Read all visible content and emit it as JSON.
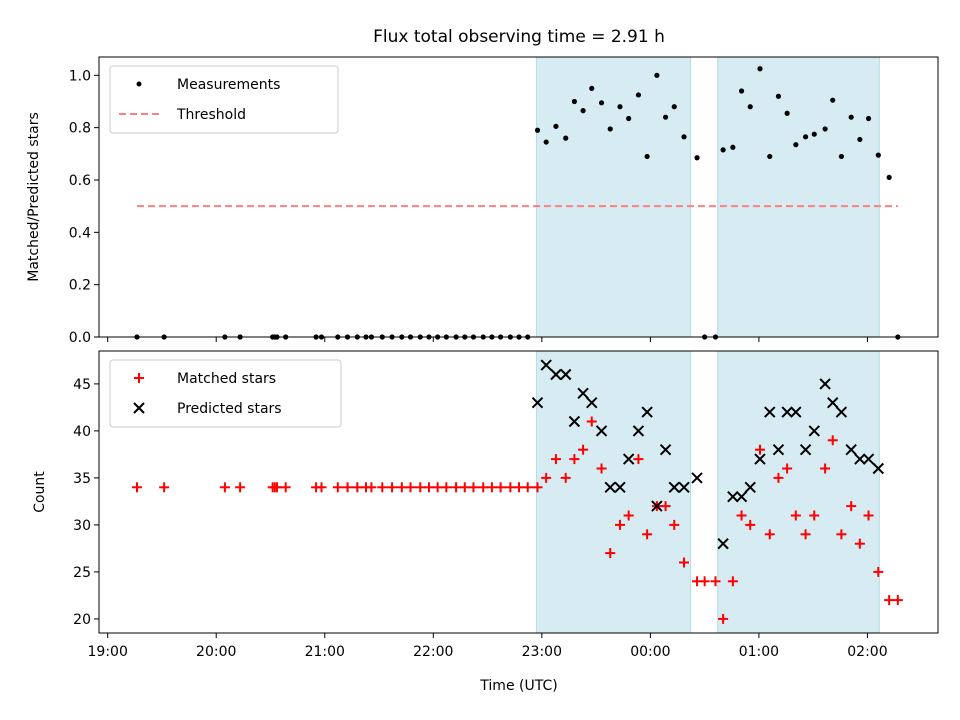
{
  "figure": {
    "title": "Flux total observing time = 2.91 h",
    "xlabel": "Time (UTC)",
    "x_unit": "hours, 19:00 = 19",
    "x_range": [
      18.92,
      26.65
    ],
    "x_ticks": [
      19,
      20,
      21,
      22,
      23,
      24,
      25,
      26
    ],
    "x_tick_labels": [
      "19:00",
      "20:00",
      "21:00",
      "22:00",
      "23:00",
      "00:00",
      "01:00",
      "02:00"
    ],
    "shaded_intervals": [
      [
        22.95,
        24.37
      ],
      [
        24.62,
        26.11
      ]
    ],
    "shade_color": "#add8e6"
  },
  "chart_data": [
    {
      "type": "scatter",
      "ylabel": "Matched/Predicted stars",
      "ylim": [
        0,
        1.07
      ],
      "yticks": [
        0.0,
        0.2,
        0.4,
        0.6,
        0.8,
        1.0
      ],
      "ytick_labels": [
        "0.0",
        "0.2",
        "0.4",
        "0.6",
        "0.8",
        "1.0"
      ],
      "legend_position": "upper-left",
      "series": [
        {
          "name": "Measurements",
          "marker": "dot",
          "color": "#000000",
          "x": [
            19.27,
            19.52,
            20.08,
            20.22,
            20.52,
            20.54,
            20.56,
            20.64,
            20.92,
            20.97,
            21.12,
            21.21,
            21.3,
            21.38,
            21.43,
            21.53,
            21.62,
            21.71,
            21.79,
            21.88,
            21.96,
            22.04,
            22.12,
            22.21,
            22.29,
            22.37,
            22.46,
            22.54,
            22.62,
            22.71,
            22.79,
            22.87,
            22.96,
            23.04,
            23.13,
            23.22,
            23.3,
            23.38,
            23.46,
            23.55,
            23.63,
            23.72,
            23.8,
            23.89,
            23.97,
            24.06,
            24.14,
            24.22,
            24.31,
            24.43,
            24.5,
            24.6,
            24.67,
            24.76,
            24.84,
            24.92,
            25.01,
            25.1,
            25.18,
            25.26,
            25.34,
            25.43,
            25.51,
            25.61,
            25.68,
            25.76,
            25.85,
            25.93,
            26.01,
            26.1,
            26.2,
            26.28
          ],
          "y": [
            0.0,
            0.0,
            0.0,
            0.0,
            0.0,
            0.0,
            0.0,
            0.0,
            0.0,
            0.0,
            0.0,
            0.0,
            0.0,
            0.0,
            0.0,
            0.0,
            0.0,
            0.0,
            0.0,
            0.0,
            0.0,
            0.0,
            0.0,
            0.0,
            0.0,
            0.0,
            0.0,
            0.0,
            0.0,
            0.0,
            0.0,
            0.0,
            0.79,
            0.745,
            0.805,
            0.76,
            0.9,
            0.865,
            0.95,
            0.895,
            0.795,
            0.88,
            0.835,
            0.925,
            0.69,
            1.0,
            0.84,
            0.88,
            0.765,
            0.685,
            0.0,
            0.0,
            0.715,
            0.725,
            0.94,
            0.88,
            1.025,
            0.69,
            0.92,
            0.855,
            0.735,
            0.765,
            0.775,
            0.795,
            0.905,
            0.69,
            0.84,
            0.755,
            0.835,
            0.695,
            0.61,
            0.0
          ]
        },
        {
          "name": "Threshold",
          "marker": "dashed-line",
          "color": "#ff7f7f",
          "x": [
            19.27,
            26.28
          ],
          "y": [
            0.5,
            0.5
          ]
        }
      ]
    },
    {
      "type": "scatter",
      "ylabel": "Count",
      "ylim": [
        18.5,
        48.5
      ],
      "yticks": [
        20,
        25,
        30,
        35,
        40,
        45
      ],
      "ytick_labels": [
        "20",
        "25",
        "30",
        "35",
        "40",
        "45"
      ],
      "legend_position": "upper-left",
      "series": [
        {
          "name": "Matched stars",
          "marker": "plus",
          "color": "#ff0000",
          "x": [
            19.27,
            19.52,
            20.08,
            20.22,
            20.52,
            20.54,
            20.56,
            20.64,
            20.92,
            20.97,
            21.12,
            21.21,
            21.3,
            21.38,
            21.43,
            21.53,
            21.62,
            21.71,
            21.79,
            21.88,
            21.96,
            22.04,
            22.12,
            22.21,
            22.29,
            22.37,
            22.46,
            22.54,
            22.62,
            22.71,
            22.79,
            22.87,
            22.96,
            23.04,
            23.13,
            23.22,
            23.3,
            23.38,
            23.46,
            23.55,
            23.63,
            23.72,
            23.8,
            23.89,
            23.97,
            24.06,
            24.14,
            24.22,
            24.31,
            24.43,
            24.5,
            24.6,
            24.67,
            24.76,
            24.84,
            24.92,
            25.01,
            25.1,
            25.18,
            25.26,
            25.34,
            25.43,
            25.51,
            25.61,
            25.68,
            25.76,
            25.85,
            25.93,
            26.01,
            26.1,
            26.2,
            26.28
          ],
          "y": [
            34,
            34,
            34,
            34,
            34,
            34,
            34,
            34,
            34,
            34,
            34,
            34,
            34,
            34,
            34,
            34,
            34,
            34,
            34,
            34,
            34,
            34,
            34,
            34,
            34,
            34,
            34,
            34,
            34,
            34,
            34,
            34,
            34,
            35,
            37,
            35,
            37,
            38,
            41,
            36,
            27,
            30,
            31,
            37,
            29,
            32,
            32,
            30,
            26,
            24,
            24,
            24,
            20,
            24,
            31,
            30,
            38,
            29,
            35,
            36,
            31,
            29,
            31,
            36,
            39,
            29,
            32,
            28,
            31,
            25,
            22,
            22
          ]
        },
        {
          "name": "Predicted stars",
          "marker": "x",
          "color": "#000000",
          "x": [
            22.96,
            23.04,
            23.13,
            23.22,
            23.3,
            23.38,
            23.46,
            23.55,
            23.63,
            23.72,
            23.8,
            23.89,
            23.97,
            24.06,
            24.14,
            24.22,
            24.31,
            24.43,
            24.67,
            24.76,
            24.84,
            24.92,
            25.01,
            25.1,
            25.18,
            25.26,
            25.34,
            25.43,
            25.51,
            25.61,
            25.68,
            25.76,
            25.85,
            25.93,
            26.01,
            26.1
          ],
          "y": [
            43,
            47,
            46,
            46,
            41,
            44,
            43,
            40,
            34,
            34,
            37,
            40,
            42,
            32,
            38,
            34,
            34,
            35,
            28,
            33,
            33,
            34,
            37,
            42,
            38,
            42,
            42,
            38,
            40,
            45,
            43,
            42,
            38,
            37,
            37,
            36
          ]
        }
      ]
    }
  ]
}
